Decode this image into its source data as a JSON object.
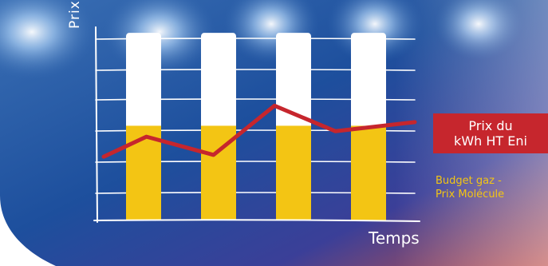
{
  "chart_data": {
    "type": "bar",
    "title": "",
    "xlabel": "Temps",
    "ylabel": "Prix",
    "ylim": [
      0,
      10
    ],
    "categories": [
      "",
      "",
      "",
      ""
    ],
    "series": [
      {
        "name": "",
        "kind": "bar-total",
        "values": [
          10.3,
          10.3,
          10.3,
          10.3
        ],
        "color": "#ffffff"
      },
      {
        "name": "Budget gaz - Prix Molécule",
        "kind": "bar-segment",
        "values": [
          5.2,
          5.2,
          5.2,
          5.2
        ],
        "color": "#f3c514"
      },
      {
        "name": "Prix du kWh HT Eni",
        "kind": "line",
        "x": [
          0,
          0.7,
          1.8,
          2.8,
          3.8,
          5.1
        ],
        "values": [
          3.5,
          4.6,
          3.6,
          6.3,
          4.9,
          5.4
        ],
        "color": "#c6262d"
      }
    ],
    "legend": {
      "price_line_line1": "Prix du",
      "price_line_line2": "kWh HT Eni",
      "budget_line1": "Budget gaz -",
      "budget_line2": "Prix Molécule"
    },
    "grid": true
  }
}
